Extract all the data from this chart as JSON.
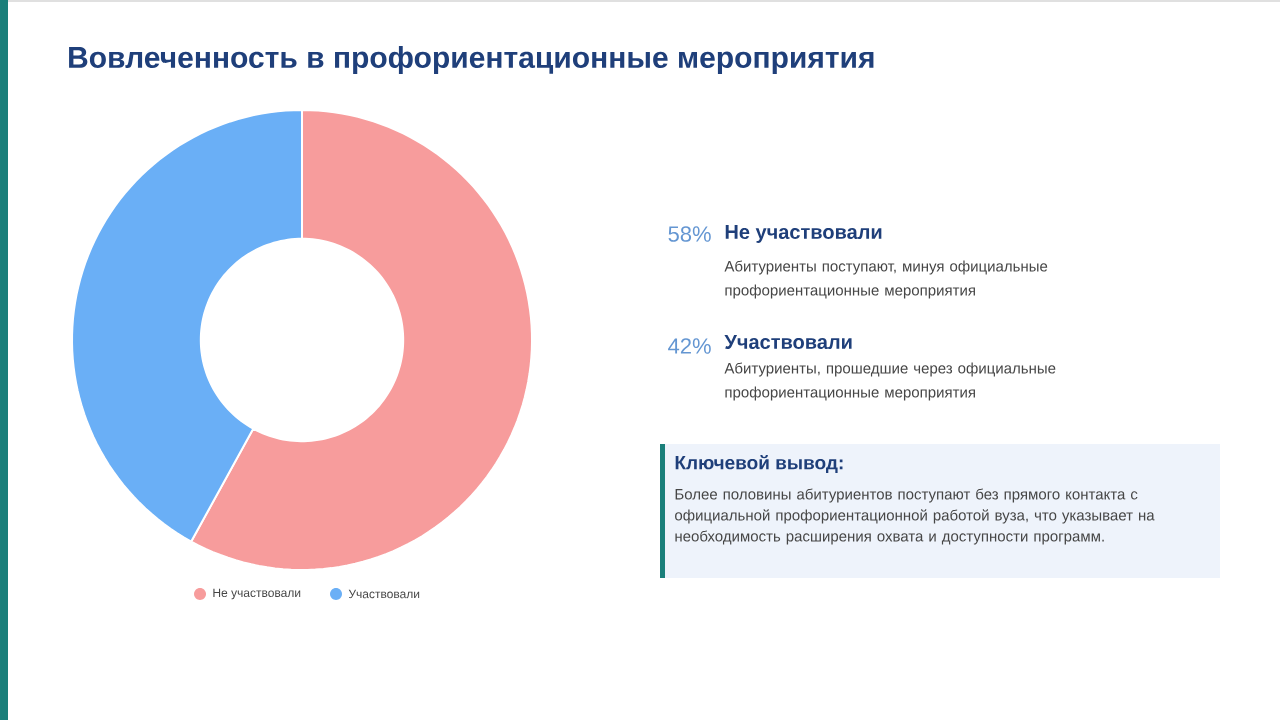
{
  "chart_data": {
    "type": "donut",
    "title": "Вовлеченность в профориентационные мероприятия",
    "categories": [
      "Не участвовали",
      "Участвовали"
    ],
    "values": [
      58,
      42
    ],
    "colors": [
      "#f79c9c",
      "#6aaff6"
    ],
    "legend": "bottom",
    "annotations": [
      "58%",
      "Абитуриенты поступают, минуя официальные профориентационные мероприятия",
      "42%",
      "Абитуриенты, прошедшие через официальные профориентационные мероприятия",
      "Ключевой вывод:",
      "Более половины абитуриентов поступают без прямого контакта с официальной профориентационной работой вуза, что указывает на необходимость расширения охвата и доступности программ."
    ]
  }
}
